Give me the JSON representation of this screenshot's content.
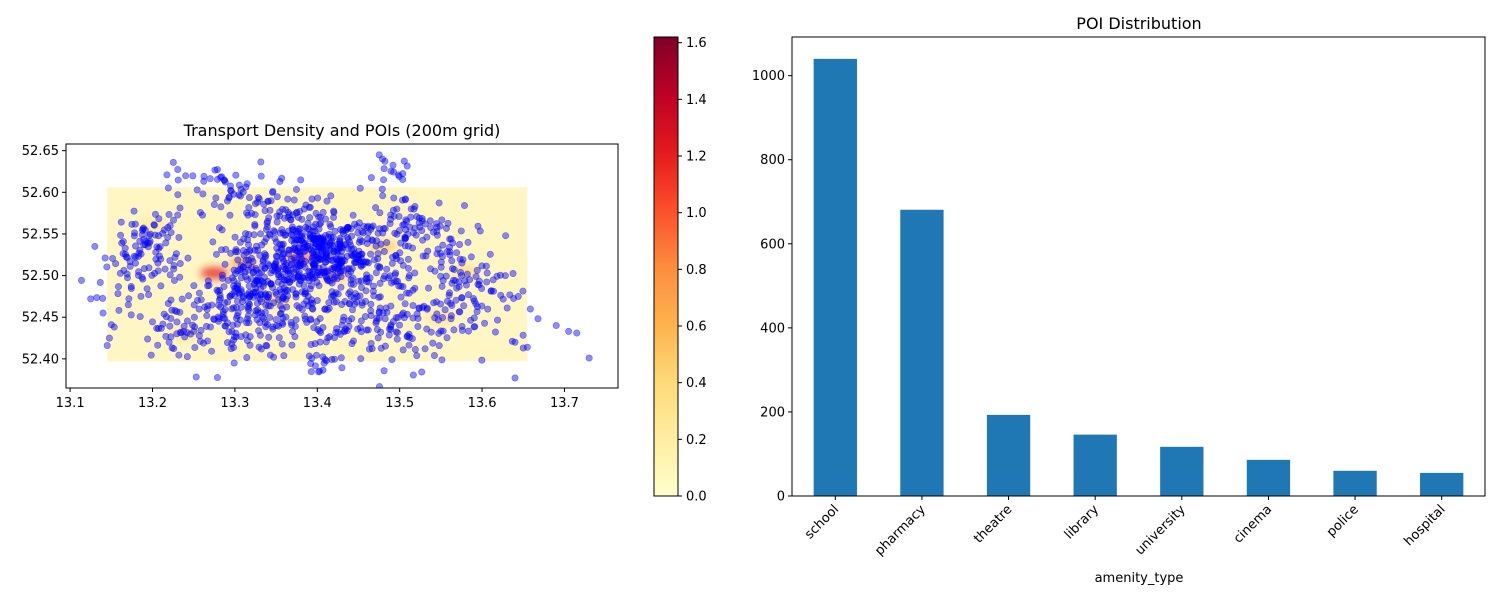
{
  "chart_data": [
    {
      "type": "heatmap",
      "title": "Transport Density and POIs (200m grid)",
      "xlabel": "",
      "ylabel": "",
      "xlim": [
        13.095,
        13.765
      ],
      "ylim": [
        52.365,
        52.658
      ],
      "x_ticks": [
        13.1,
        13.2,
        13.3,
        13.4,
        13.5,
        13.6,
        13.7
      ],
      "y_ticks": [
        52.4,
        52.45,
        52.5,
        52.55,
        52.6,
        52.65
      ],
      "x_tick_labels": [
        "13.1",
        "13.2",
        "13.3",
        "13.4",
        "13.5",
        "13.6",
        "13.7"
      ],
      "y_tick_labels": [
        "52.40",
        "52.45",
        "52.50",
        "52.55",
        "52.60",
        "52.65"
      ],
      "density_grid_extent": {
        "x": [
          13.145,
          13.655
        ],
        "y": [
          52.397,
          52.606
        ]
      },
      "density_hotspots": [
        {
          "x": 13.275,
          "y": 52.503,
          "value": 1.2
        },
        {
          "x": 13.38,
          "y": 52.522,
          "value": 0.9
        },
        {
          "x": 13.31,
          "y": 52.515,
          "value": 0.7
        },
        {
          "x": 13.42,
          "y": 52.5,
          "value": 0.6
        },
        {
          "x": 13.35,
          "y": 52.47,
          "value": 0.5
        },
        {
          "x": 13.48,
          "y": 52.535,
          "value": 0.5
        },
        {
          "x": 13.58,
          "y": 52.505,
          "value": 0.4
        },
        {
          "x": 13.24,
          "y": 52.43,
          "value": 0.35
        },
        {
          "x": 13.2,
          "y": 52.56,
          "value": 0.3
        },
        {
          "x": 13.55,
          "y": 52.45,
          "value": 0.35
        }
      ],
      "colorbar": {
        "colormap": "YlOrRd",
        "range": [
          0.0,
          1.62
        ],
        "ticks": [
          0.0,
          0.2,
          0.4,
          0.6,
          0.8,
          1.0,
          1.2,
          1.4,
          1.6
        ],
        "tick_labels": [
          "0.0",
          "0.2",
          "0.4",
          "0.6",
          "0.8",
          "1.0",
          "1.2",
          "1.4",
          "1.6"
        ]
      },
      "poi_points": {
        "color": "#0000ff",
        "alpha": 0.45,
        "clusters": [
          {
            "x": 13.4,
            "y": 52.525,
            "sx": 0.025,
            "sy": 0.022,
            "n": 260
          },
          {
            "x": 13.33,
            "y": 52.49,
            "sx": 0.03,
            "sy": 0.028,
            "n": 200
          },
          {
            "x": 13.45,
            "y": 52.51,
            "sx": 0.035,
            "sy": 0.03,
            "n": 160
          },
          {
            "x": 13.36,
            "y": 52.57,
            "sx": 0.035,
            "sy": 0.025,
            "n": 90
          },
          {
            "x": 13.3,
            "y": 52.45,
            "sx": 0.04,
            "sy": 0.025,
            "n": 100
          },
          {
            "x": 13.42,
            "y": 52.44,
            "sx": 0.04,
            "sy": 0.025,
            "n": 90
          },
          {
            "x": 13.2,
            "y": 52.54,
            "sx": 0.02,
            "sy": 0.02,
            "n": 70
          },
          {
            "x": 13.5,
            "y": 52.56,
            "sx": 0.03,
            "sy": 0.02,
            "n": 60
          },
          {
            "x": 13.56,
            "y": 52.51,
            "sx": 0.03,
            "sy": 0.035,
            "n": 80
          },
          {
            "x": 13.52,
            "y": 52.44,
            "sx": 0.035,
            "sy": 0.025,
            "n": 70
          },
          {
            "x": 13.6,
            "y": 52.47,
            "sx": 0.025,
            "sy": 0.03,
            "n": 50
          },
          {
            "x": 13.24,
            "y": 52.44,
            "sx": 0.035,
            "sy": 0.025,
            "n": 60
          },
          {
            "x": 13.29,
            "y": 52.6,
            "sx": 0.025,
            "sy": 0.02,
            "n": 40
          },
          {
            "x": 13.17,
            "y": 52.5,
            "sx": 0.025,
            "sy": 0.03,
            "n": 35
          },
          {
            "x": 13.49,
            "y": 52.625,
            "sx": 0.01,
            "sy": 0.008,
            "n": 15
          },
          {
            "x": 13.23,
            "y": 52.615,
            "sx": 0.01,
            "sy": 0.008,
            "n": 8
          },
          {
            "x": 13.4,
            "y": 52.395,
            "sx": 0.008,
            "sy": 0.005,
            "n": 12
          }
        ],
        "outliers": [
          {
            "x": 13.125,
            "y": 52.472
          },
          {
            "x": 13.13,
            "y": 52.535
          },
          {
            "x": 13.14,
            "y": 52.455
          },
          {
            "x": 13.145,
            "y": 52.416
          },
          {
            "x": 13.69,
            "y": 52.44
          },
          {
            "x": 13.705,
            "y": 52.433
          },
          {
            "x": 13.715,
            "y": 52.431
          },
          {
            "x": 13.73,
            "y": 52.401
          },
          {
            "x": 13.65,
            "y": 52.413
          },
          {
            "x": 13.655,
            "y": 52.414
          },
          {
            "x": 13.64,
            "y": 52.377
          },
          {
            "x": 13.64,
            "y": 52.42
          }
        ]
      }
    },
    {
      "type": "bar",
      "title": "POI Distribution",
      "xlabel": "amenity_type",
      "ylabel": "",
      "categories": [
        "school",
        "pharmacy",
        "theatre",
        "library",
        "university",
        "cinema",
        "police",
        "hospital"
      ],
      "values": [
        1040,
        681,
        193,
        146,
        117,
        86,
        60,
        55
      ],
      "ylim": [
        0,
        1092
      ],
      "y_ticks": [
        0,
        200,
        400,
        600,
        800,
        1000
      ],
      "y_tick_labels": [
        "0",
        "200",
        "400",
        "600",
        "800",
        "1000"
      ],
      "bar_color": "#1f77b4"
    }
  ]
}
